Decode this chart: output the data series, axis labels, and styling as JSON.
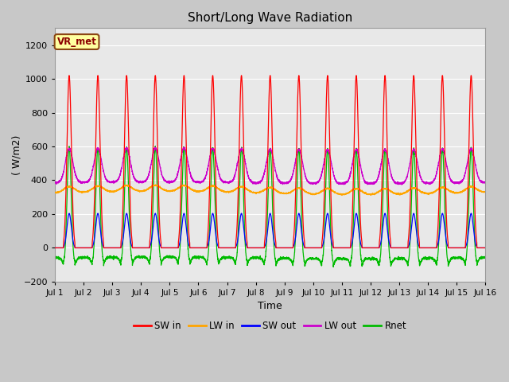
{
  "title": "Short/Long Wave Radiation",
  "xlabel": "Time",
  "ylabel": "( W/m2)",
  "ylim": [
    -200,
    1300
  ],
  "xlim": [
    0,
    15
  ],
  "yticks": [
    -200,
    0,
    200,
    400,
    600,
    800,
    1000,
    1200
  ],
  "xtick_labels": [
    "Jul 1",
    "Jul 2",
    "Jul 3",
    "Jul 4",
    "Jul 5",
    "Jul 6",
    "Jul 7",
    "Jul 8",
    "Jul 9",
    "Jul 10",
    "Jul 11",
    "Jul 12",
    "Jul 13",
    "Jul 14",
    "Jul 15",
    "Jul 16"
  ],
  "annotation_text": "VR_met",
  "annotation_color": "#8B0000",
  "annotation_bg": "#FFFFA0",
  "fig_bg": "#C8C8C8",
  "plot_bg": "#E8E8E8",
  "grid_color": "#FFFFFF",
  "series": {
    "SW_in": {
      "color": "#FF0000",
      "label": "SW in"
    },
    "LW_in": {
      "color": "#FFA500",
      "label": "LW in"
    },
    "SW_out": {
      "color": "#0000FF",
      "label": "SW out"
    },
    "LW_out": {
      "color": "#CC00CC",
      "label": "LW out"
    },
    "Rnet": {
      "color": "#00BB00",
      "label": "Rnet"
    }
  },
  "n_days": 15,
  "points_per_day": 288
}
